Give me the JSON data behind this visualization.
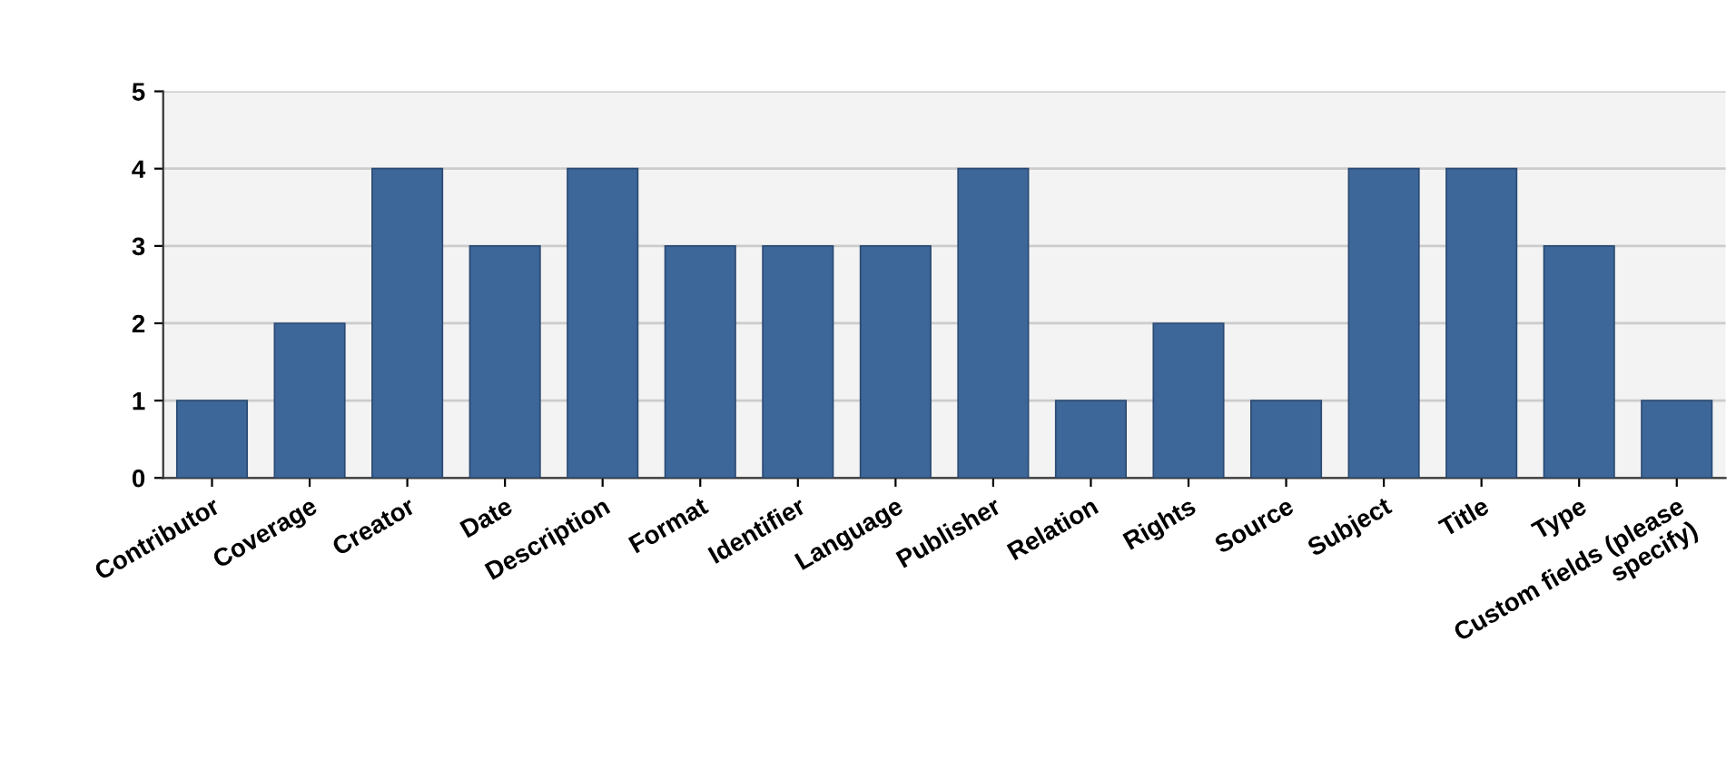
{
  "chart_data": {
    "type": "bar",
    "categories": [
      "Contributor",
      "Coverage",
      "Creator",
      "Date",
      "Description",
      "Format",
      "Identifier",
      "Language",
      "Publisher",
      "Relation",
      "Rights",
      "Source",
      "Subject",
      "Title",
      "Type",
      "Custom fields (please\nspecify)"
    ],
    "values": [
      1,
      2,
      4,
      3,
      4,
      3,
      3,
      3,
      4,
      1,
      2,
      1,
      4,
      4,
      3,
      1
    ],
    "color": "#3d6699",
    "ylim": [
      0,
      5
    ],
    "yticks": [
      0,
      1,
      2,
      3,
      4,
      5
    ],
    "grid": "y"
  }
}
